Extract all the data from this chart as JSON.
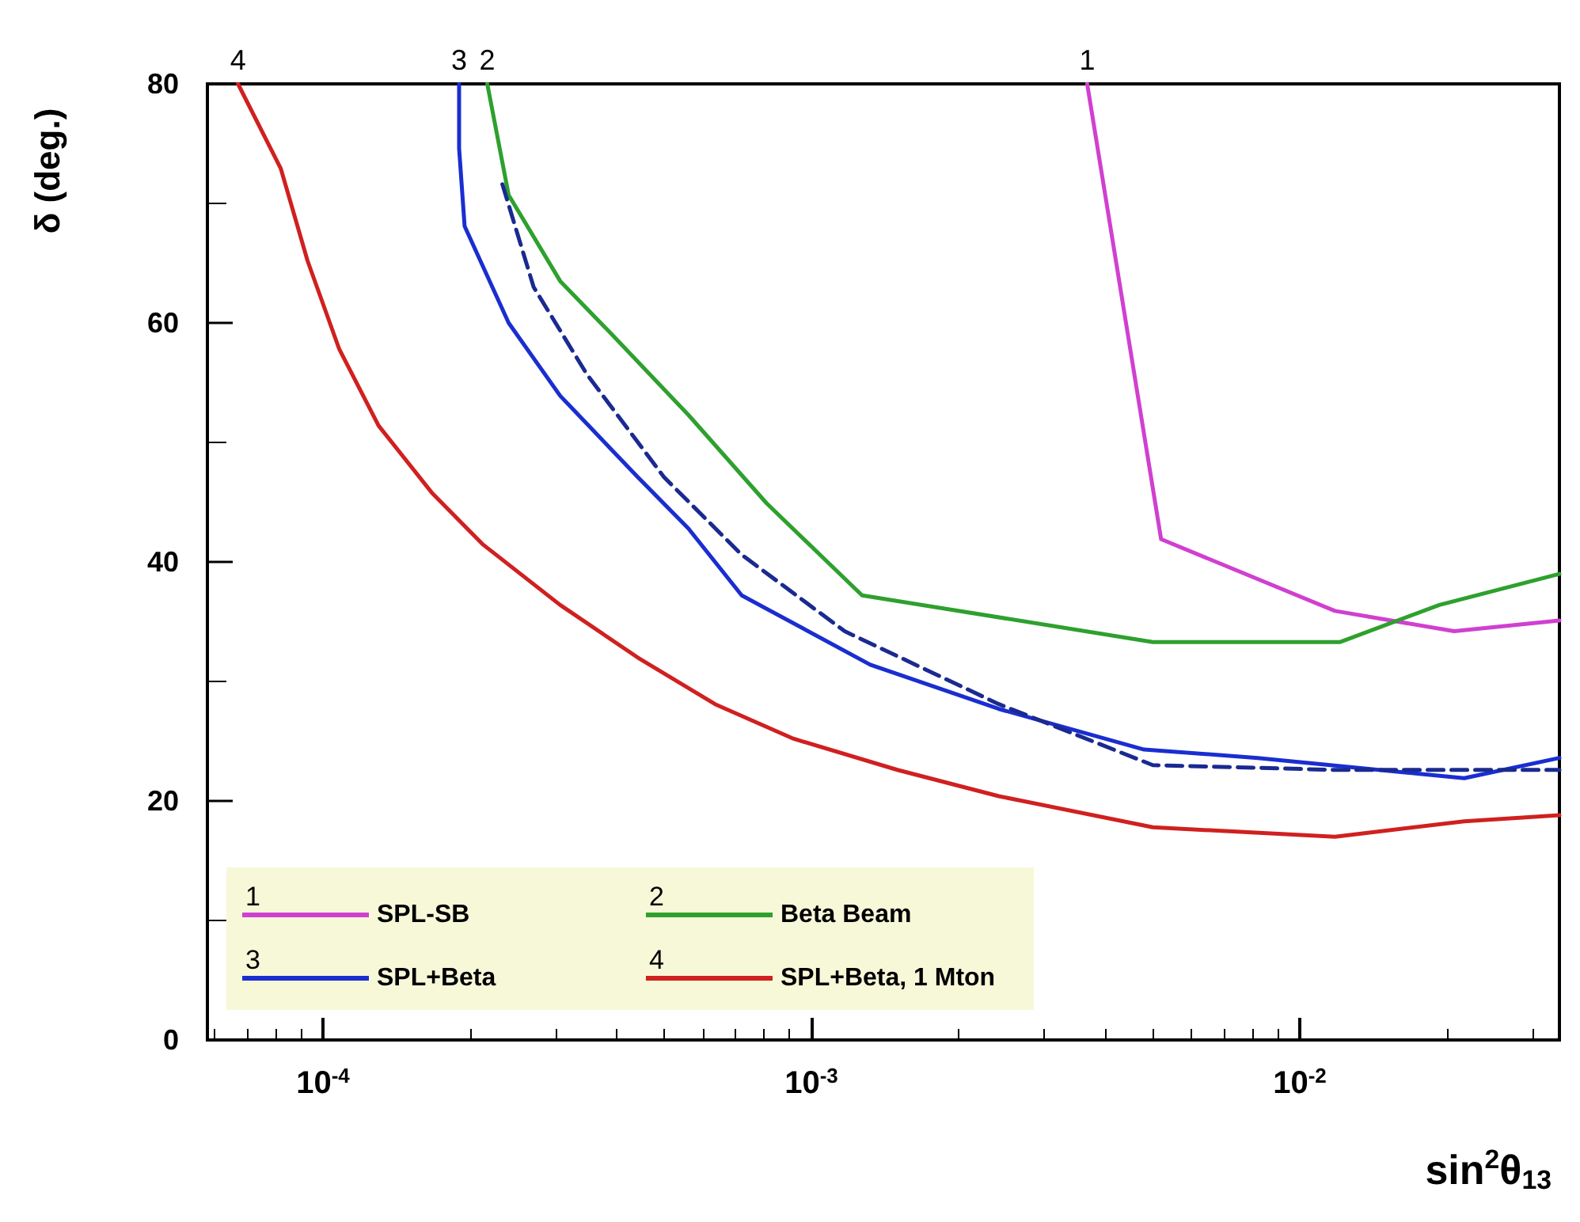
{
  "chart_data": {
    "type": "line",
    "xlabel": "sin$^{2}$θ$_{13}$",
    "ylabel": "δ (deg.)",
    "log": "x",
    "xlim": [
      5.8e-05,
      0.034
    ],
    "xticks": [
      {
        "value": 0.0001,
        "label": "10$^{-4}$"
      },
      {
        "value": 0.001,
        "label": "10$^{-3}$"
      },
      {
        "value": 0.01,
        "label": "10$^{-2}$"
      }
    ],
    "ylim": [
      0,
      80
    ],
    "yticks": [
      0,
      20,
      40,
      60,
      80
    ],
    "grid": false,
    "legend": "bottom left",
    "marker": "none",
    "series": [
      {
        "name": "SPL-SB",
        "color": "#d040d0",
        "x": [
          0.00367,
          0.0052,
          0.0118,
          0.0207,
          0.034
        ],
        "values": [
          80,
          41.9,
          35.9,
          34.2,
          35.1
        ]
      },
      {
        "name": "Beta Beam",
        "color": "#2ea02e",
        "x": [
          0.000217,
          0.00024,
          0.000306,
          0.000389,
          0.00056,
          0.00081,
          0.00127,
          0.005,
          0.0121,
          0.0193,
          0.034
        ],
        "values": [
          80,
          70.7,
          63.5,
          59.1,
          52.3,
          44.9,
          37.2,
          33.3,
          33.3,
          36.4,
          39.0
        ]
      },
      {
        "name": "SPL+Beta",
        "color": "#1a2ed0",
        "x": [
          0.00019,
          0.00019,
          0.000195,
          0.00024,
          0.000306,
          0.000441,
          0.00056,
          0.00072,
          0.00132,
          0.00242,
          0.0048,
          0.0082,
          0.0217,
          0.034
        ],
        "values": [
          80,
          74.6,
          68.1,
          60.0,
          53.9,
          47.1,
          42.8,
          37.2,
          31.4,
          27.7,
          24.3,
          23.6,
          21.9,
          23.6
        ]
      },
      {
        "name": "SPL+Beta, 1 Mton",
        "color": "#d02020",
        "x": [
          6.7e-05,
          8.2e-05,
          9.3e-05,
          0.000108,
          0.00013,
          0.000167,
          0.000212,
          0.000306,
          0.000441,
          0.000635,
          0.00092,
          0.0015,
          0.00242,
          0.005,
          0.0118,
          0.0217,
          0.034
        ],
        "values": [
          80,
          72.9,
          65.2,
          57.8,
          51.4,
          45.8,
          41.5,
          36.4,
          32.0,
          28.1,
          25.2,
          22.6,
          20.4,
          17.8,
          17.0,
          18.3,
          18.8
        ]
      },
      {
        "color": "#1a2a90",
        "line_style": "dashed",
        "x": [
          0.000233,
          0.00027,
          0.000347,
          0.000499,
          0.00072,
          0.00117,
          0.00242,
          0.005,
          0.0118,
          0.034
        ],
        "values": [
          71.6,
          63.0,
          55.7,
          47.1,
          40.6,
          34.2,
          28.1,
          23.0,
          22.6,
          22.6
        ]
      }
    ],
    "annotations": [
      {
        "text": "1",
        "x": 0.00367,
        "y": 80
      },
      {
        "text": "2",
        "x": 0.000217,
        "y": 80
      },
      {
        "text": "3",
        "x": 0.00019,
        "y": 80
      },
      {
        "text": "4",
        "x": 6.7e-05,
        "y": 80
      }
    ]
  }
}
